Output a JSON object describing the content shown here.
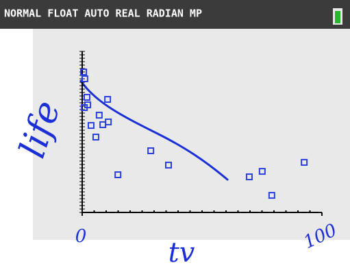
{
  "status_bar": {
    "text": "NORMAL FLOAT AUTO REAL RADIAN MP"
  },
  "chart_data": {
    "type": "scatter",
    "x_label": "tv",
    "y_label": "life",
    "x": [
      0.6,
      1.1,
      2,
      0.9,
      2.3,
      3.7,
      5.7,
      7.1,
      8.6,
      10.6,
      10.9,
      14.9,
      28.6,
      36,
      69.7,
      75.1,
      79.1,
      92.6
    ],
    "values": [
      87.2,
      83,
      71.5,
      65.1,
      66.8,
      54,
      46.8,
      60.4,
      54.5,
      70.2,
      56.2,
      23.4,
      38.3,
      29.4,
      22.1,
      25.5,
      10.6,
      31.1
    ],
    "color": "#2a3fe0",
    "xlim": [
      0,
      100
    ],
    "ylim": [
      0,
      100
    ],
    "xticks": [
      0,
      100
    ]
  }
}
